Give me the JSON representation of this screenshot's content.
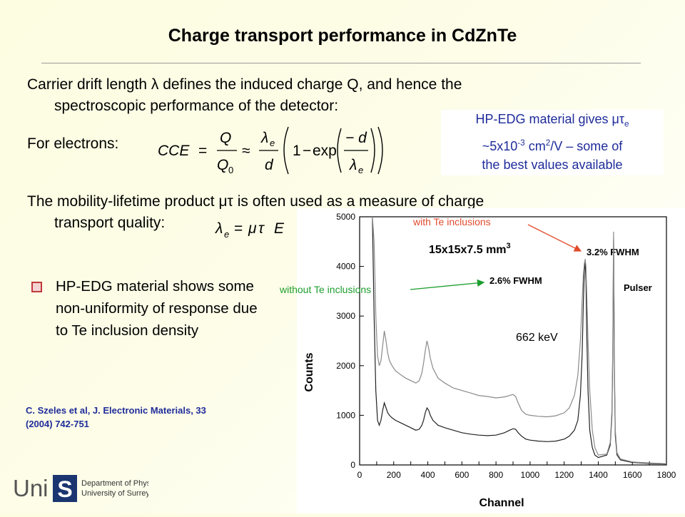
{
  "slide": {
    "title": "Charge transport performance in CdZnTe",
    "para_drift": {
      "line1_pre": "Carrier drift length",
      "lambda": "λ",
      "line1_post": "defines the induced charge Q, and hence the",
      "line2": "spectroscopic performance of the detector:"
    },
    "para_electrons": "For electrons:",
    "cce_equation": {
      "lhs": "CCE",
      "eq": "=",
      "q": "Q",
      "q0": "Q",
      "q0_sub": "0",
      "approx": "≈",
      "lambda_e": "λ",
      "lambda_sub": "e",
      "d": "d",
      "one": "1",
      "minus": "−",
      "exp": "exp",
      "neg_d": "− d"
    },
    "para_mutau": {
      "line1_pre": "The mobility-lifetime product",
      "mutau": "μτ",
      "line1_post": "is often used as a measure of charge",
      "line2": "transport quality:"
    },
    "mutau_equation": {
      "lambda": "λ",
      "sub": "e",
      "eq": "=",
      "mu": "μ",
      "tau": "τ",
      "E": "E"
    },
    "callout": {
      "pre": "HP-EDG material gives",
      "mutau": "μτ",
      "sub": "e",
      "value": "~5x10",
      "exp": "-3",
      "unit": "cm",
      "unit_exp": "2",
      "unit_post": "/V – some of",
      "line3": "the best values available"
    },
    "bullet": "HP-EDG material shows some non-uniformity of response due to Te inclusion density",
    "citation": {
      "line1": "C. Szeles et al, J. Electronic Materials, 33",
      "line2": "(2004) 742-751"
    },
    "logo": {
      "uni": "Uni",
      "s": "S",
      "line1": "Department of Physics",
      "line2": "University of Surrey"
    },
    "label_with": "with Te inclusions",
    "label_without": "without Te inclusions",
    "colors": {
      "title": "#000000",
      "callout_text": "#1f2c9a",
      "citation_text": "#1f2c9a",
      "label_with": "#e24b2d",
      "label_without": "#1d9e2e",
      "bullet_icon": "#c0393b",
      "trace_without": "#222222",
      "trace_with": "#8a8a8a"
    }
  },
  "chart_data": {
    "type": "line",
    "xlabel": "Channel",
    "ylabel": "Counts",
    "xlim": [
      0,
      1800
    ],
    "ylim": [
      0,
      5000
    ],
    "x_ticks": [
      0,
      100,
      200,
      300,
      400,
      500,
      600,
      700,
      800,
      900,
      1000,
      1100,
      1200,
      1300,
      1400,
      1500,
      1600,
      1700,
      1800
    ],
    "x_tick_labels": [
      "0",
      "200",
      "400",
      "600",
      "800",
      "1000",
      "1200",
      "1400",
      "1600",
      "1800"
    ],
    "y_ticks": [
      0,
      1000,
      2000,
      3000,
      4000,
      5000
    ],
    "y_tick_labels": [
      "0",
      "1000",
      "2000",
      "3000",
      "4000",
      "5000"
    ],
    "grid": false,
    "annotations": {
      "sample": "15x15x7.5 mm",
      "sample_exp": "3",
      "fwhm_with": "3.2% FWHM",
      "fwhm_without": "2.6% FWHM",
      "pulser": "Pulser",
      "energy": "662 keV"
    },
    "series": [
      {
        "name": "without Te inclusions",
        "x": [
          75,
          85,
          95,
          105,
          115,
          125,
          135,
          145,
          155,
          165,
          175,
          190,
          210,
          240,
          270,
          300,
          330,
          350,
          365,
          375,
          385,
          395,
          405,
          415,
          430,
          460,
          500,
          550,
          600,
          650,
          700,
          750,
          800,
          850,
          880,
          900,
          915,
          930,
          950,
          975,
          1000,
          1050,
          1100,
          1150,
          1200,
          1230,
          1260,
          1280,
          1295,
          1305,
          1312,
          1318,
          1323,
          1328,
          1333,
          1340,
          1350,
          1365,
          1380,
          1400,
          1450,
          1470,
          1480,
          1485,
          1488,
          1490,
          1492,
          1495,
          1500,
          1510,
          1530,
          1600,
          1700,
          1800
        ],
        "y": [
          5000,
          3000,
          1500,
          900,
          800,
          900,
          1100,
          1250,
          1150,
          1050,
          1000,
          950,
          900,
          850,
          800,
          750,
          700,
          720,
          800,
          900,
          1050,
          1150,
          1100,
          1000,
          900,
          800,
          750,
          700,
          650,
          620,
          600,
          590,
          600,
          650,
          700,
          730,
          720,
          650,
          580,
          520,
          500,
          480,
          470,
          480,
          520,
          580,
          700,
          900,
          1400,
          2200,
          3200,
          3900,
          4100,
          3700,
          2600,
          1500,
          700,
          350,
          200,
          150,
          200,
          400,
          1000,
          2200,
          3700,
          4550,
          3500,
          1800,
          600,
          200,
          100,
          50,
          30,
          20
        ]
      },
      {
        "name": "with Te inclusions",
        "x": [
          75,
          85,
          95,
          105,
          115,
          125,
          135,
          145,
          155,
          165,
          175,
          190,
          210,
          240,
          270,
          300,
          330,
          350,
          365,
          375,
          385,
          395,
          405,
          415,
          430,
          460,
          500,
          550,
          600,
          650,
          700,
          750,
          800,
          850,
          880,
          900,
          915,
          930,
          950,
          975,
          1000,
          1050,
          1100,
          1150,
          1200,
          1230,
          1260,
          1280,
          1295,
          1305,
          1312,
          1318,
          1323,
          1328,
          1333,
          1340,
          1350,
          1365,
          1380,
          1400,
          1450,
          1470,
          1480,
          1485,
          1488,
          1490,
          1492,
          1495,
          1500,
          1510,
          1530,
          1600,
          1700,
          1800
        ],
        "y": [
          5000,
          4500,
          3000,
          2200,
          2000,
          2100,
          2400,
          2700,
          2500,
          2250,
          2100,
          2000,
          1900,
          1820,
          1750,
          1700,
          1650,
          1700,
          1850,
          2050,
          2300,
          2500,
          2350,
          2150,
          1950,
          1750,
          1650,
          1550,
          1500,
          1450,
          1400,
          1380,
          1350,
          1370,
          1400,
          1420,
          1380,
          1250,
          1100,
          1020,
          1000,
          980,
          970,
          990,
          1050,
          1150,
          1400,
          1800,
          2500,
          3300,
          3800,
          4050,
          4150,
          4000,
          3400,
          2500,
          1500,
          700,
          350,
          200,
          220,
          450,
          1100,
          2400,
          3900,
          4700,
          3700,
          2000,
          700,
          250,
          120,
          60,
          40,
          25
        ]
      }
    ]
  }
}
